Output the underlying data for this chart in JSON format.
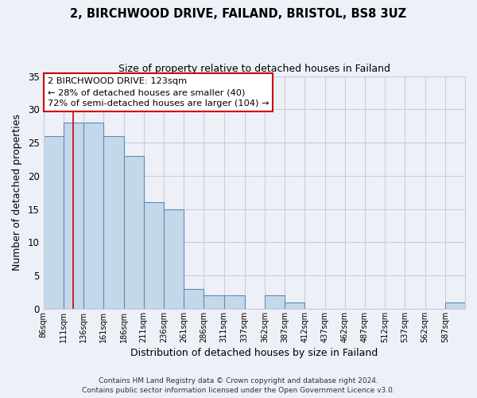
{
  "title1": "2, BIRCHWOOD DRIVE, FAILAND, BRISTOL, BS8 3UZ",
  "title2": "Size of property relative to detached houses in Failand",
  "xlabel": "Distribution of detached houses by size in Failand",
  "ylabel": "Number of detached properties",
  "bin_labels": [
    "86sqm",
    "111sqm",
    "136sqm",
    "161sqm",
    "186sqm",
    "211sqm",
    "236sqm",
    "261sqm",
    "286sqm",
    "311sqm",
    "337sqm",
    "362sqm",
    "387sqm",
    "412sqm",
    "437sqm",
    "462sqm",
    "487sqm",
    "512sqm",
    "537sqm",
    "562sqm",
    "587sqm"
  ],
  "bin_edges": [
    86,
    111,
    136,
    161,
    186,
    211,
    236,
    261,
    286,
    311,
    337,
    362,
    387,
    412,
    437,
    462,
    487,
    512,
    537,
    562,
    587,
    612
  ],
  "counts": [
    26,
    28,
    28,
    26,
    23,
    16,
    15,
    3,
    2,
    2,
    0,
    2,
    1,
    0,
    0,
    0,
    0,
    0,
    0,
    0,
    1
  ],
  "bar_color": "#c5d8ea",
  "bar_edge_color": "#5b8db8",
  "property_line_x": 123,
  "property_line_color": "#cc0000",
  "annotation_line1": "2 BIRCHWOOD DRIVE: 123sqm",
  "annotation_line2": "← 28% of detached houses are smaller (40)",
  "annotation_line3": "72% of semi-detached houses are larger (104) →",
  "ylim": [
    0,
    35
  ],
  "yticks": [
    0,
    5,
    10,
    15,
    20,
    25,
    30,
    35
  ],
  "footer1": "Contains HM Land Registry data © Crown copyright and database right 2024.",
  "footer2": "Contains public sector information licensed under the Open Government Licence v3.0.",
  "background_color": "#eef0f8",
  "grid_color": "#c8cce0",
  "ann_box_facecolor": "#ffffff",
  "ann_box_edgecolor": "#cc0000"
}
